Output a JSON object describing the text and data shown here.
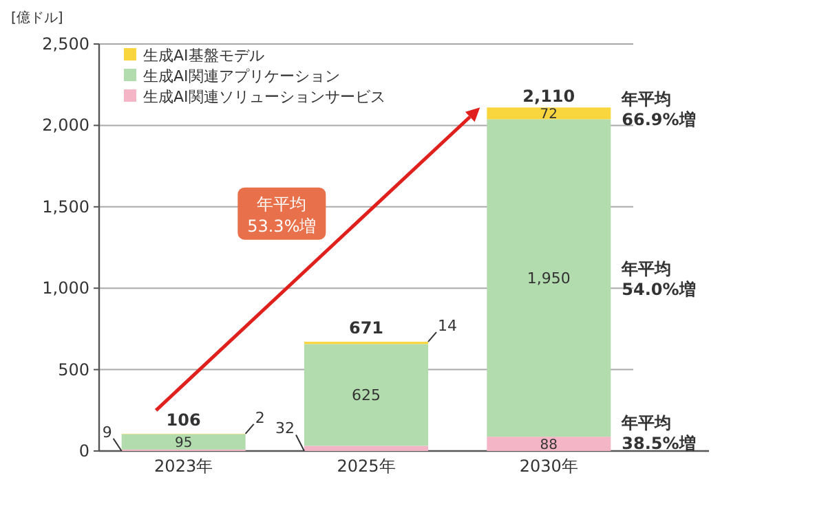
{
  "chart_data": {
    "type": "bar",
    "stacked": true,
    "ylabel": "[億ドル]",
    "categories": [
      "2023年",
      "2025年",
      "2030年"
    ],
    "series": [
      {
        "name": "生成AI関連ソリューションサービス",
        "color": "#f4b6c6",
        "values": [
          9,
          32,
          88
        ],
        "value_labels": [
          "9",
          "32",
          "88"
        ]
      },
      {
        "name": "生成AI関連アプリケーション",
        "color": "#b2dcae",
        "values": [
          95,
          625,
          1950
        ],
        "value_labels": [
          "95",
          "625",
          "1,950"
        ]
      },
      {
        "name": "生成AI基盤モデル",
        "color": "#f9d53e",
        "values": [
          2,
          14,
          72
        ],
        "value_labels": [
          "2",
          "14",
          "72"
        ]
      }
    ],
    "ylim": [
      0,
      2500
    ],
    "yticks": [
      {
        "value": 0,
        "label": "0"
      },
      {
        "value": 500,
        "label": "500"
      },
      {
        "value": 1000,
        "label": "1,000"
      },
      {
        "value": 1500,
        "label": "1,500"
      },
      {
        "value": 2000,
        "label": "2,000"
      },
      {
        "value": 2500,
        "label": "2,500"
      }
    ],
    "grid": "y",
    "legend": "top left",
    "totals": [
      "106",
      "671",
      "2,110"
    ],
    "annotations": [
      "年平均\n66.9%増",
      "年平均\n54.0%増",
      "年平均\n38.5%増",
      "年平均\n53.3%増"
    ]
  }
}
